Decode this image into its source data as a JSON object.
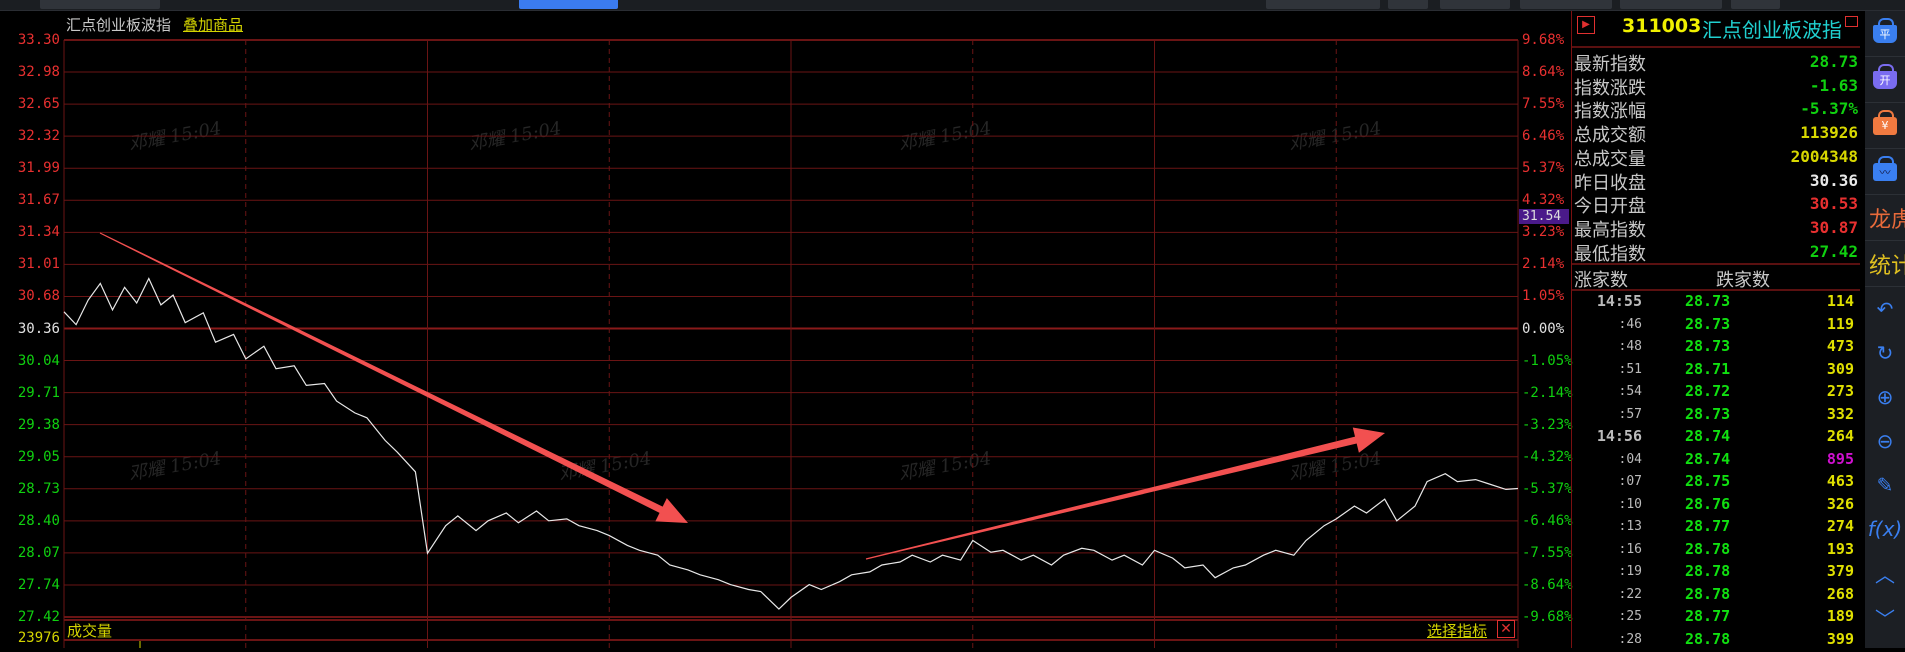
{
  "chart_title": "汇点创业板波指",
  "overlay_link": "叠加商品",
  "watermark": "邓耀 15:04",
  "colors": {
    "up": "#e83030",
    "down": "#10d010",
    "neutral": "#e0e0e0",
    "grid": "#6a1414",
    "line": "#e8e8e8",
    "annotation": "#f25050",
    "volume": "#d4d400"
  },
  "chart_data": {
    "type": "line",
    "prev_close": 30.36,
    "ylim": [
      27.42,
      33.3
    ],
    "y_ticks": [
      "33.30",
      "32.98",
      "32.65",
      "32.32",
      "31.99",
      "31.67",
      "31.34",
      "31.01",
      "30.68",
      "30.36",
      "30.04",
      "29.71",
      "29.38",
      "29.05",
      "28.73",
      "28.40",
      "28.07",
      "27.74",
      "27.42"
    ],
    "pct_ticks": [
      "9.68%",
      "8.64%",
      "7.55%",
      "6.46%",
      "5.37%",
      "4.32%",
      "3.23%",
      "2.14%",
      "1.05%",
      "0.00%",
      "-1.05%",
      "-2.14%",
      "-3.23%",
      "-4.32%",
      "-5.37%",
      "-6.46%",
      "-7.55%",
      "-8.64%",
      "-9.68%"
    ],
    "xlim": [
      0,
      240
    ],
    "x": [
      0,
      2,
      4,
      6,
      8,
      10,
      12,
      14,
      16,
      18,
      20,
      23,
      25,
      28,
      30,
      33,
      35,
      38,
      40,
      43,
      45,
      48,
      50,
      53,
      55,
      58,
      60,
      63,
      65,
      68,
      70,
      73,
      75,
      78,
      80,
      83,
      85,
      88,
      90,
      93,
      95,
      98,
      100,
      103,
      105,
      108,
      110,
      113,
      115,
      118,
      120,
      123,
      125,
      128,
      130,
      133,
      135,
      138,
      140,
      143,
      145,
      148,
      150,
      153,
      155,
      158,
      160,
      163,
      165,
      168,
      170,
      173,
      175,
      178,
      180,
      183,
      185,
      188,
      190,
      193,
      195,
      198,
      200,
      203,
      205,
      208,
      210,
      213,
      215,
      218,
      220,
      223,
      225,
      228,
      230,
      233,
      235,
      238,
      240
    ],
    "values": [
      30.53,
      30.4,
      30.65,
      30.82,
      30.55,
      30.78,
      30.62,
      30.87,
      30.6,
      30.7,
      30.42,
      30.52,
      30.22,
      30.3,
      30.05,
      30.18,
      29.95,
      29.98,
      29.78,
      29.8,
      29.62,
      29.5,
      29.45,
      29.22,
      29.1,
      28.9,
      28.07,
      28.35,
      28.45,
      28.3,
      28.4,
      28.48,
      28.38,
      28.5,
      28.4,
      28.42,
      28.35,
      28.3,
      28.25,
      28.15,
      28.1,
      28.05,
      27.95,
      27.9,
      27.85,
      27.8,
      27.75,
      27.7,
      27.68,
      27.5,
      27.62,
      27.75,
      27.7,
      27.78,
      27.85,
      27.88,
      27.95,
      27.98,
      28.05,
      27.98,
      28.05,
      28.0,
      28.2,
      28.08,
      28.1,
      28.0,
      28.05,
      27.95,
      28.05,
      28.12,
      28.1,
      28.0,
      28.05,
      27.95,
      28.1,
      28.02,
      27.92,
      27.95,
      27.82,
      27.92,
      27.95,
      28.05,
      28.1,
      28.05,
      28.2,
      28.35,
      28.42,
      28.55,
      28.48,
      28.62,
      28.4,
      28.55,
      28.8,
      28.88,
      28.8,
      28.82,
      28.78,
      28.72,
      28.73
    ],
    "crosshair_price": "31.54"
  },
  "volume": {
    "label": "成交量",
    "max": "23976",
    "select_indicator": "选择指标"
  },
  "panel": {
    "code": "311003",
    "name": "汇点创业板波指",
    "stats": [
      {
        "label": "最新指数",
        "value": "28.73",
        "color": "#10d010"
      },
      {
        "label": "指数涨跌",
        "value": "-1.63",
        "color": "#10d010"
      },
      {
        "label": "指数涨幅",
        "value": "-5.37%",
        "color": "#10d010"
      },
      {
        "label": "总成交额",
        "value": "113926",
        "color": "#d8d800"
      },
      {
        "label": "总成交量",
        "value": "2004348",
        "color": "#d8d800"
      },
      {
        "label": "昨日收盘",
        "value": "30.36",
        "color": "#e8e8e8"
      },
      {
        "label": "今日开盘",
        "value": "30.53",
        "color": "#e83030"
      },
      {
        "label": "最高指数",
        "value": "30.87",
        "color": "#e83030"
      },
      {
        "label": "最低指数",
        "value": "27.42",
        "color": "#10d010"
      }
    ],
    "col_up": "涨家数",
    "col_down": "跌家数",
    "ticks": [
      {
        "time": "14:55",
        "price": "28.73",
        "count": "114"
      },
      {
        "time": ":46",
        "price": "28.73",
        "count": "119"
      },
      {
        "time": ":48",
        "price": "28.73",
        "count": "473"
      },
      {
        "time": ":51",
        "price": "28.71",
        "count": "309"
      },
      {
        "time": ":54",
        "price": "28.72",
        "count": "273"
      },
      {
        "time": ":57",
        "price": "28.73",
        "count": "332"
      },
      {
        "time": "14:56",
        "price": "28.74",
        "count": "264"
      },
      {
        "time": ":04",
        "price": "28.74",
        "count": "895",
        "highlight": "#d010d0"
      },
      {
        "time": ":07",
        "price": "28.75",
        "count": "463"
      },
      {
        "time": ":10",
        "price": "28.76",
        "count": "326"
      },
      {
        "time": ":13",
        "price": "28.77",
        "count": "274"
      },
      {
        "time": ":16",
        "price": "28.78",
        "count": "193"
      },
      {
        "time": ":19",
        "price": "28.78",
        "count": "379"
      },
      {
        "time": ":22",
        "price": "28.78",
        "count": "268"
      },
      {
        "time": ":25",
        "price": "28.77",
        "count": "189"
      },
      {
        "time": ":28",
        "price": "28.78",
        "count": "399"
      }
    ]
  },
  "toolbar": {
    "ping": "平",
    "kai": "开",
    "yuan": "¥",
    "longhu": "龙虎",
    "tongji": "统计"
  }
}
